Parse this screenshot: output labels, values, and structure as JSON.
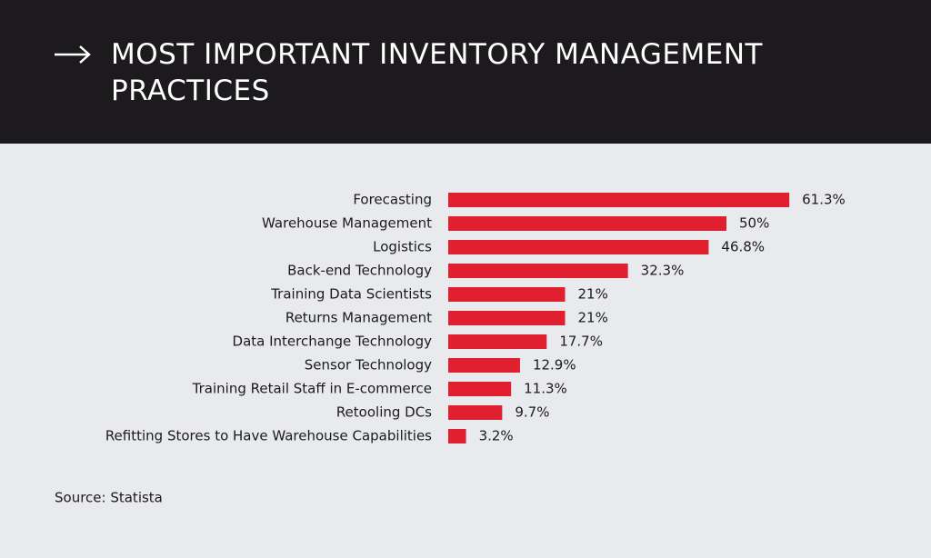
{
  "chart_data": {
    "type": "bar",
    "orientation": "horizontal",
    "title": "MOST IMPORTANT INVENTORY MANAGEMENT PRACTICES",
    "categories": [
      "Forecasting",
      "Warehouse Management",
      "Logistics",
      "Back-end Technology",
      "Training Data Scientists",
      "Returns Management",
      "Data Interchange Technology",
      "Sensor Technology",
      "Training Retail Staff in E-commerce",
      "Retooling DCs",
      "Refitting Stores to Have Warehouse Capabilities"
    ],
    "values": [
      61.3,
      50,
      46.8,
      32.3,
      21,
      21,
      17.7,
      12.9,
      11.3,
      9.7,
      3.2
    ],
    "value_labels": [
      "61.3%",
      "50%",
      "46.8%",
      "32.3%",
      "21%",
      "21%",
      "17.7%",
      "12.9%",
      "11.3%",
      "9.7%",
      "3.2%"
    ],
    "color": "#e0202e",
    "source": "Source: Statista"
  }
}
